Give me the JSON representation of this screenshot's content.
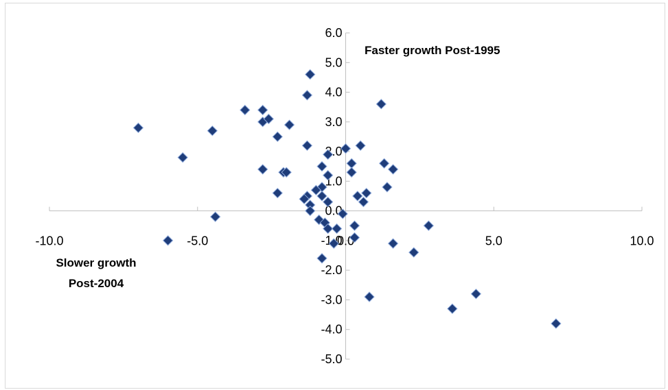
{
  "chart_data": {
    "type": "scatter",
    "title": "",
    "xlabel": "",
    "ylabel": "",
    "xlim": [
      -10.0,
      10.0
    ],
    "ylim": [
      -5.0,
      6.0
    ],
    "x_ticks": [
      "-10.0",
      "-5.0",
      "0.0",
      "5.0",
      "10.0"
    ],
    "y_ticks": [
      "6.0",
      "5.0",
      "4.0",
      "3.0",
      "2.0",
      "1.0",
      "0.0",
      "-1.0",
      "-2.0",
      "-3.0",
      "-4.0",
      "-5.0"
    ],
    "annotations": {
      "top_right": "Faster growth Post-1995",
      "bottom_left_line1": "Slower growth",
      "bottom_left_line2": "Post-2004"
    },
    "marker": "diamond",
    "marker_color": "#1f3d7a",
    "marker_edge": "#8eaadb",
    "axis_color": "#bfbfbf",
    "grid": false,
    "legend": "none",
    "points": [
      [
        -7.0,
        2.8
      ],
      [
        -5.5,
        1.8
      ],
      [
        -6.0,
        -1.0
      ],
      [
        -4.4,
        -0.2
      ],
      [
        -4.5,
        2.7
      ],
      [
        -3.4,
        3.4
      ],
      [
        -2.8,
        3.4
      ],
      [
        -2.8,
        3.0
      ],
      [
        -2.6,
        3.1
      ],
      [
        -1.9,
        2.9
      ],
      [
        -2.3,
        2.5
      ],
      [
        -2.8,
        1.4
      ],
      [
        -2.1,
        1.3
      ],
      [
        -2.0,
        1.3
      ],
      [
        -2.3,
        0.6
      ],
      [
        -1.3,
        2.2
      ],
      [
        -1.2,
        4.6
      ],
      [
        -1.3,
        3.9
      ],
      [
        -0.6,
        1.9
      ],
      [
        -0.6,
        1.2
      ],
      [
        -0.8,
        1.5
      ],
      [
        -0.8,
        0.8
      ],
      [
        -1.0,
        0.7
      ],
      [
        -1.3,
        0.5
      ],
      [
        -1.4,
        0.4
      ],
      [
        -1.2,
        0.2
      ],
      [
        -1.2,
        0.0
      ],
      [
        -0.8,
        0.5
      ],
      [
        -0.6,
        0.3
      ],
      [
        -0.9,
        -0.3
      ],
      [
        -0.7,
        -0.4
      ],
      [
        -0.6,
        -0.6
      ],
      [
        -0.3,
        -0.6
      ],
      [
        -0.1,
        -0.1
      ],
      [
        -0.4,
        -1.1
      ],
      [
        -0.8,
        -1.6
      ],
      [
        0.0,
        2.1
      ],
      [
        0.2,
        1.6
      ],
      [
        0.2,
        1.3
      ],
      [
        0.5,
        2.2
      ],
      [
        0.4,
        0.5
      ],
      [
        0.6,
        0.3
      ],
      [
        0.7,
        0.6
      ],
      [
        0.3,
        -0.5
      ],
      [
        0.3,
        -0.9
      ],
      [
        0.8,
        -2.9
      ],
      [
        1.2,
        3.6
      ],
      [
        1.3,
        1.6
      ],
      [
        1.6,
        1.4
      ],
      [
        1.4,
        0.8
      ],
      [
        1.6,
        -1.1
      ],
      [
        2.3,
        -1.4
      ],
      [
        2.8,
        -0.5
      ],
      [
        3.6,
        -3.3
      ],
      [
        4.4,
        -2.8
      ],
      [
        7.1,
        -3.8
      ]
    ]
  }
}
